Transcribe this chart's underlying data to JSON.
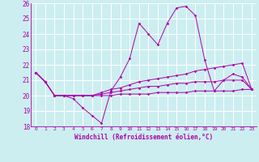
{
  "xlabel": "Windchill (Refroidissement éolien,°C)",
  "xlim": [
    -0.5,
    23.5
  ],
  "ylim": [
    18,
    26
  ],
  "yticks": [
    18,
    19,
    20,
    21,
    22,
    23,
    24,
    25,
    26
  ],
  "xticks": [
    0,
    1,
    2,
    3,
    4,
    5,
    6,
    7,
    8,
    9,
    10,
    11,
    12,
    13,
    14,
    15,
    16,
    17,
    18,
    19,
    20,
    21,
    22,
    23
  ],
  "bg_color": "#cceef0",
  "grid_color": "#ffffff",
  "line_color": "#aa00aa",
  "lines": [
    [
      21.5,
      20.9,
      20.0,
      20.0,
      19.8,
      19.2,
      18.7,
      18.2,
      20.3,
      21.2,
      22.4,
      24.7,
      24.0,
      23.3,
      24.7,
      25.7,
      25.8,
      25.2,
      22.3,
      20.3,
      21.0,
      21.4,
      21.2,
      20.4
    ],
    [
      21.5,
      20.9,
      20.0,
      20.0,
      20.0,
      20.0,
      20.0,
      20.2,
      20.4,
      20.5,
      20.7,
      20.9,
      21.0,
      21.1,
      21.2,
      21.3,
      21.4,
      21.6,
      21.7,
      21.8,
      21.9,
      22.0,
      22.1,
      20.4
    ],
    [
      21.5,
      20.9,
      20.0,
      20.0,
      20.0,
      20.0,
      20.0,
      20.1,
      20.2,
      20.3,
      20.4,
      20.5,
      20.6,
      20.6,
      20.7,
      20.8,
      20.8,
      20.9,
      20.9,
      20.9,
      21.0,
      21.0,
      21.0,
      20.4
    ],
    [
      21.5,
      20.9,
      20.0,
      20.0,
      20.0,
      20.0,
      20.0,
      20.0,
      20.0,
      20.1,
      20.1,
      20.1,
      20.1,
      20.2,
      20.2,
      20.2,
      20.2,
      20.3,
      20.3,
      20.3,
      20.3,
      20.3,
      20.4,
      20.4
    ]
  ]
}
